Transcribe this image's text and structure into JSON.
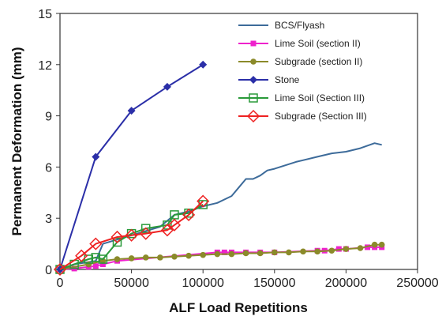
{
  "chart_data": {
    "type": "line",
    "title": "",
    "xlabel": "ALF Load Repetitions",
    "ylabel": "Permanent Deformation (mm)",
    "xlim": [
      0,
      250000
    ],
    "ylim": [
      0,
      15
    ],
    "xticks": [
      0,
      50000,
      100000,
      150000,
      200000,
      250000
    ],
    "xtick_labels": [
      "0",
      "50000",
      "100000",
      "150000",
      "200000",
      "250000"
    ],
    "yticks": [
      0,
      3,
      6,
      9,
      12,
      15
    ],
    "ytick_labels": [
      "0",
      "3",
      "6",
      "9",
      "12",
      "15"
    ],
    "grid": false,
    "legend_position": "top-right",
    "series": [
      {
        "name": "BCS/Flyash",
        "color": "#3d6b9a",
        "marker": "none",
        "x": [
          0,
          10000,
          25000,
          30000,
          50000,
          70000,
          80000,
          90000,
          100000,
          110000,
          120000,
          125000,
          130000,
          135000,
          140000,
          145000,
          150000,
          165000,
          180000,
          190000,
          200000,
          210000,
          220000,
          225000
        ],
        "y": [
          0,
          0.3,
          0.5,
          1.5,
          2.0,
          2.5,
          3.2,
          3.4,
          3.7,
          3.9,
          4.3,
          4.8,
          5.3,
          5.3,
          5.5,
          5.8,
          5.9,
          6.3,
          6.6,
          6.8,
          6.9,
          7.1,
          7.4,
          7.3
        ]
      },
      {
        "name": "Lime Soil (section II)",
        "color": "#ee22cc",
        "marker": "square",
        "x": [
          0,
          10000,
          20000,
          25000,
          30000,
          40000,
          110000,
          115000,
          120000,
          130000,
          140000,
          150000,
          180000,
          185000,
          195000,
          200000,
          215000,
          220000,
          225000
        ],
        "y": [
          0,
          0.05,
          0.15,
          0.2,
          0.3,
          0.5,
          1.0,
          1.0,
          1.0,
          1.0,
          1.0,
          1.0,
          1.1,
          1.1,
          1.2,
          1.2,
          1.3,
          1.3,
          1.3
        ]
      },
      {
        "name": "Subgrade (section II)",
        "color": "#8b8a2a",
        "marker": "circle",
        "x": [
          0,
          20000,
          30000,
          40000,
          50000,
          60000,
          70000,
          80000,
          90000,
          100000,
          110000,
          120000,
          130000,
          140000,
          150000,
          160000,
          170000,
          180000,
          190000,
          200000,
          210000,
          220000,
          225000
        ],
        "y": [
          0,
          0.3,
          0.5,
          0.6,
          0.65,
          0.7,
          0.7,
          0.75,
          0.8,
          0.85,
          0.9,
          0.9,
          0.95,
          0.95,
          1.0,
          1.0,
          1.05,
          1.05,
          1.1,
          1.2,
          1.25,
          1.45,
          1.45
        ]
      },
      {
        "name": "Stone",
        "color": "#2b2fa8",
        "marker": "diamond",
        "x": [
          0,
          25000,
          50000,
          75000,
          100000
        ],
        "y": [
          0,
          6.6,
          9.3,
          10.7,
          12.0
        ]
      },
      {
        "name": "Lime Soil (Section III)",
        "color": "#2a9a3a",
        "marker": "square-open",
        "x": [
          0,
          10000,
          20000,
          25000,
          30000,
          40000,
          50000,
          60000,
          75000,
          80000,
          90000,
          100000
        ],
        "y": [
          0,
          0.3,
          0.6,
          0.7,
          0.6,
          1.6,
          2.1,
          2.4,
          2.6,
          3.2,
          3.3,
          3.8
        ]
      },
      {
        "name": "Subgrade (Section III)",
        "color": "#ee2222",
        "marker": "diamond-open",
        "x": [
          0,
          15000,
          25000,
          40000,
          50000,
          60000,
          75000,
          80000,
          90000,
          100000
        ],
        "y": [
          0,
          0.8,
          1.5,
          1.9,
          2.0,
          2.1,
          2.3,
          2.6,
          3.2,
          4.0
        ]
      }
    ]
  }
}
